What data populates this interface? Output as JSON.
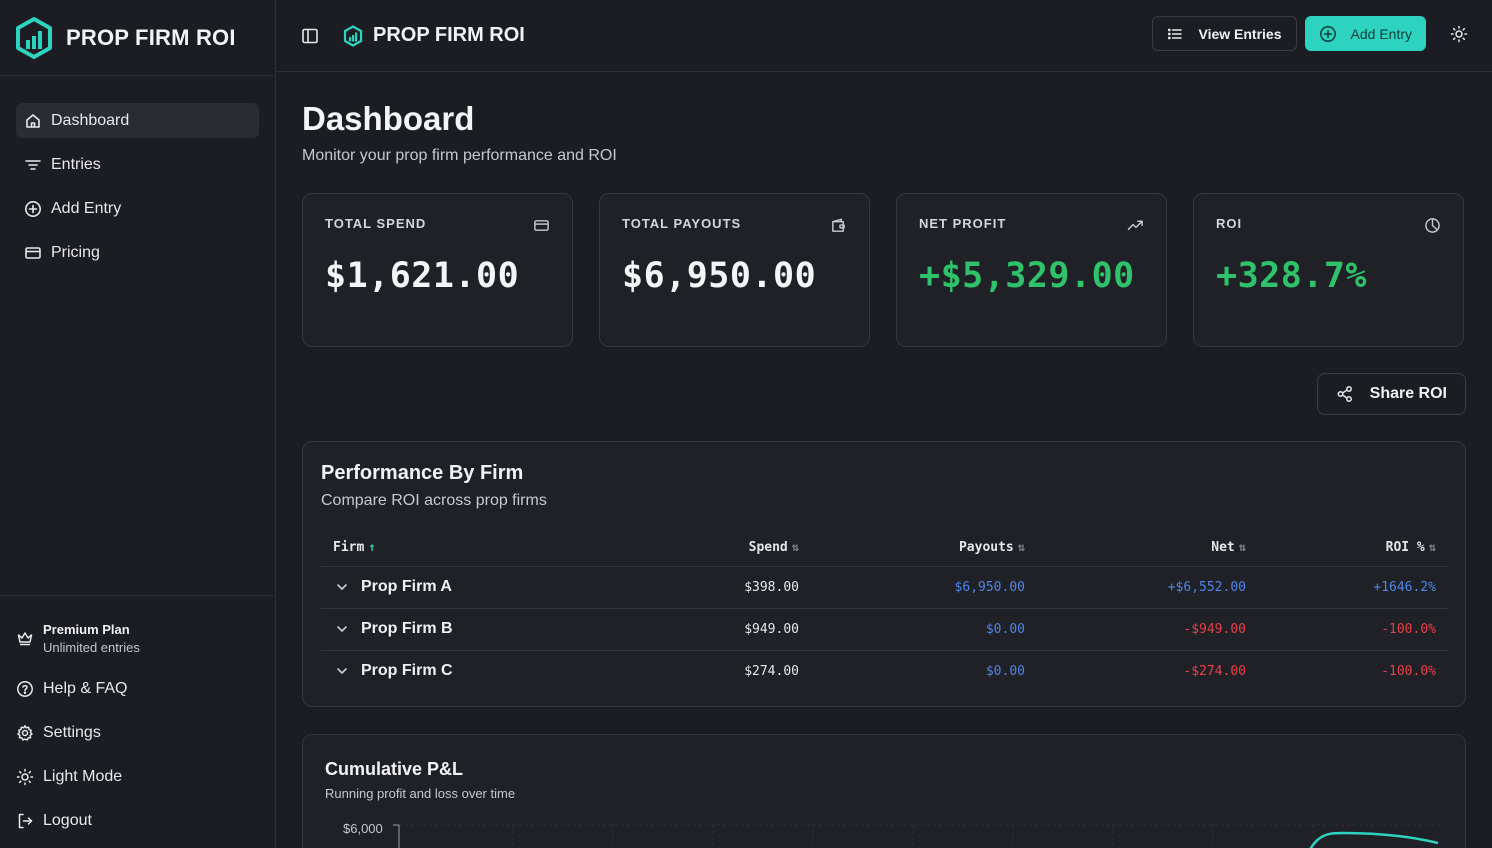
{
  "app": {
    "name": "PROP FIRM ROI"
  },
  "sidebar": {
    "items": [
      {
        "label": "Dashboard",
        "icon": "home-icon",
        "active": true
      },
      {
        "label": "Entries",
        "icon": "filter-lines-icon"
      },
      {
        "label": "Add Entry",
        "icon": "plus-circle-icon"
      },
      {
        "label": "Pricing",
        "icon": "credit-card-icon"
      }
    ],
    "plan": {
      "title": "Premium Plan",
      "subtitle": "Unlimited entries",
      "icon": "crown-icon"
    },
    "bottom": [
      {
        "label": "Help & FAQ",
        "icon": "help-circle-icon"
      },
      {
        "label": "Settings",
        "icon": "gear-icon"
      },
      {
        "label": "Light Mode",
        "icon": "sun-icon"
      },
      {
        "label": "Logout",
        "icon": "logout-icon"
      }
    ]
  },
  "topbar": {
    "view_entries_label": "View Entries",
    "add_entry_label": "Add Entry"
  },
  "page": {
    "title": "Dashboard",
    "subtitle": "Monitor your prop firm performance and ROI"
  },
  "stats": [
    {
      "label": "TOTAL SPEND",
      "value": "$1,621.00",
      "icon": "credit-card-icon",
      "positive": false
    },
    {
      "label": "TOTAL PAYOUTS",
      "value": "$6,950.00",
      "icon": "wallet-icon",
      "positive": false
    },
    {
      "label": "NET PROFIT",
      "value": "+$5,329.00",
      "icon": "trending-up-icon",
      "positive": true
    },
    {
      "label": "ROI",
      "value": "+328.7%",
      "icon": "pie-chart-icon",
      "positive": true
    }
  ],
  "share": {
    "label": "Share ROI"
  },
  "performance": {
    "title": "Performance By Firm",
    "subtitle": "Compare ROI across prop firms",
    "columns": [
      "Firm",
      "Spend",
      "Payouts",
      "Net",
      "ROI %"
    ],
    "rows": [
      {
        "firm": "Prop Firm A",
        "spend": "$398.00",
        "payouts": "$6,950.00",
        "net": "+$6,552.00",
        "roi": "+1646.2%"
      },
      {
        "firm": "Prop Firm B",
        "spend": "$949.00",
        "payouts": "$0.00",
        "net": "-$949.00",
        "roi": "-100.0%"
      },
      {
        "firm": "Prop Firm C",
        "spend": "$274.00",
        "payouts": "$0.00",
        "net": "-$274.00",
        "roi": "-100.0%"
      }
    ]
  },
  "cumulative": {
    "title": "Cumulative P&L",
    "subtitle": "Running profit and loss over time",
    "y_tick_top": "$6,000"
  },
  "colors": {
    "accent": "#2ed3c0",
    "positive": "#2fc26a",
    "negative": "#e8414a",
    "payout_blue": "#4e86e8"
  }
}
